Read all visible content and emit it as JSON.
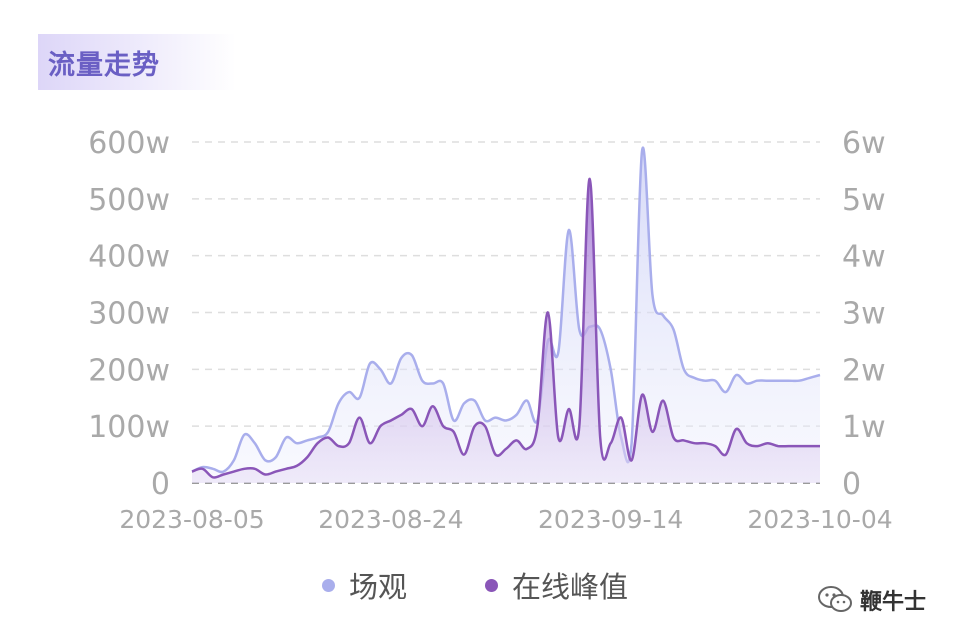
{
  "page_title": "流量走势",
  "colors": {
    "views": "#a9aeec",
    "peak": "#8a56b8",
    "title": "#6a5fc4"
  },
  "legend": [
    {
      "label": "场观",
      "color": "#a9aeec"
    },
    {
      "label": "在线峰值",
      "color": "#8a56b8"
    }
  ],
  "watermark": {
    "text": "鞭牛士",
    "icon": "wechat-icon"
  },
  "chart_data": {
    "type": "area",
    "title": "",
    "x_start": "2023-08-05",
    "x_end": "2023-10-04",
    "x_ticks": [
      "2023-08-05",
      "2023-08-24",
      "2023-09-14",
      "2023-10-04"
    ],
    "y_left": {
      "ticks": [
        "0",
        "100w",
        "200w",
        "300w",
        "400w",
        "500w",
        "600w"
      ],
      "range": [
        0,
        600
      ],
      "unit": "w"
    },
    "y_right": {
      "ticks": [
        "0",
        "1w",
        "2w",
        "3w",
        "4w",
        "5w",
        "6w"
      ],
      "range": [
        0,
        6
      ],
      "unit": "w"
    },
    "grid": true,
    "legend_position": "bottom",
    "series": [
      {
        "name": "场观",
        "axis": "left",
        "points": [
          [
            "2023-08-05",
            20
          ],
          [
            "2023-08-06",
            28
          ],
          [
            "2023-08-07",
            25
          ],
          [
            "2023-08-08",
            20
          ],
          [
            "2023-08-09",
            40
          ],
          [
            "2023-08-10",
            85
          ],
          [
            "2023-08-11",
            70
          ],
          [
            "2023-08-12",
            40
          ],
          [
            "2023-08-13",
            45
          ],
          [
            "2023-08-14",
            80
          ],
          [
            "2023-08-15",
            70
          ],
          [
            "2023-08-16",
            75
          ],
          [
            "2023-08-17",
            80
          ],
          [
            "2023-08-18",
            90
          ],
          [
            "2023-08-19",
            140
          ],
          [
            "2023-08-20",
            160
          ],
          [
            "2023-08-21",
            150
          ],
          [
            "2023-08-22",
            210
          ],
          [
            "2023-08-23",
            200
          ],
          [
            "2023-08-24",
            175
          ],
          [
            "2023-08-25",
            220
          ],
          [
            "2023-08-26",
            225
          ],
          [
            "2023-08-27",
            180
          ],
          [
            "2023-08-28",
            175
          ],
          [
            "2023-08-29",
            175
          ],
          [
            "2023-08-30",
            110
          ],
          [
            "2023-08-31",
            140
          ],
          [
            "2023-09-01",
            145
          ],
          [
            "2023-09-02",
            110
          ],
          [
            "2023-09-03",
            115
          ],
          [
            "2023-09-04",
            110
          ],
          [
            "2023-09-05",
            120
          ],
          [
            "2023-09-06",
            145
          ],
          [
            "2023-09-07",
            110
          ],
          [
            "2023-09-08",
            250
          ],
          [
            "2023-09-09",
            230
          ],
          [
            "2023-09-10",
            445
          ],
          [
            "2023-09-11",
            270
          ],
          [
            "2023-09-12",
            275
          ],
          [
            "2023-09-13",
            270
          ],
          [
            "2023-09-14",
            200
          ],
          [
            "2023-09-15",
            80
          ],
          [
            "2023-09-16",
            70
          ],
          [
            "2023-09-17",
            585
          ],
          [
            "2023-09-18",
            330
          ],
          [
            "2023-09-19",
            295
          ],
          [
            "2023-09-20",
            270
          ],
          [
            "2023-09-21",
            200
          ],
          [
            "2023-09-22",
            185
          ],
          [
            "2023-09-23",
            180
          ],
          [
            "2023-09-24",
            180
          ],
          [
            "2023-09-25",
            160
          ],
          [
            "2023-09-26",
            190
          ],
          [
            "2023-09-27",
            175
          ],
          [
            "2023-09-28",
            180
          ],
          [
            "2023-09-29",
            180
          ],
          [
            "2023-09-30",
            180
          ],
          [
            "2023-10-01",
            180
          ],
          [
            "2023-10-02",
            180
          ],
          [
            "2023-10-03",
            185
          ],
          [
            "2023-10-04",
            190
          ]
        ]
      },
      {
        "name": "在线峰值",
        "axis": "right",
        "points": [
          [
            "2023-08-05",
            0.2
          ],
          [
            "2023-08-06",
            0.25
          ],
          [
            "2023-08-07",
            0.1
          ],
          [
            "2023-08-08",
            0.15
          ],
          [
            "2023-08-09",
            0.2
          ],
          [
            "2023-08-10",
            0.25
          ],
          [
            "2023-08-11",
            0.25
          ],
          [
            "2023-08-12",
            0.15
          ],
          [
            "2023-08-13",
            0.2
          ],
          [
            "2023-08-14",
            0.25
          ],
          [
            "2023-08-15",
            0.3
          ],
          [
            "2023-08-16",
            0.45
          ],
          [
            "2023-08-17",
            0.7
          ],
          [
            "2023-08-18",
            0.8
          ],
          [
            "2023-08-19",
            0.65
          ],
          [
            "2023-08-20",
            0.7
          ],
          [
            "2023-08-21",
            1.15
          ],
          [
            "2023-08-22",
            0.7
          ],
          [
            "2023-08-23",
            1.0
          ],
          [
            "2023-08-24",
            1.1
          ],
          [
            "2023-08-25",
            1.2
          ],
          [
            "2023-08-26",
            1.3
          ],
          [
            "2023-08-27",
            1.0
          ],
          [
            "2023-08-28",
            1.35
          ],
          [
            "2023-08-29",
            1.0
          ],
          [
            "2023-08-30",
            0.9
          ],
          [
            "2023-08-31",
            0.5
          ],
          [
            "2023-09-01",
            1.0
          ],
          [
            "2023-09-02",
            1.0
          ],
          [
            "2023-09-03",
            0.5
          ],
          [
            "2023-09-04",
            0.6
          ],
          [
            "2023-09-05",
            0.75
          ],
          [
            "2023-09-06",
            0.6
          ],
          [
            "2023-09-07",
            1.0
          ],
          [
            "2023-09-08",
            3.0
          ],
          [
            "2023-09-09",
            0.8
          ],
          [
            "2023-09-10",
            1.3
          ],
          [
            "2023-09-11",
            1.0
          ],
          [
            "2023-09-12",
            5.35
          ],
          [
            "2023-09-13",
            0.8
          ],
          [
            "2023-09-14",
            0.7
          ],
          [
            "2023-09-15",
            1.15
          ],
          [
            "2023-09-16",
            0.4
          ],
          [
            "2023-09-17",
            1.55
          ],
          [
            "2023-09-18",
            0.9
          ],
          [
            "2023-09-19",
            1.45
          ],
          [
            "2023-09-20",
            0.8
          ],
          [
            "2023-09-21",
            0.75
          ],
          [
            "2023-09-22",
            0.7
          ],
          [
            "2023-09-23",
            0.7
          ],
          [
            "2023-09-24",
            0.65
          ],
          [
            "2023-09-25",
            0.5
          ],
          [
            "2023-09-26",
            0.95
          ],
          [
            "2023-09-27",
            0.7
          ],
          [
            "2023-09-28",
            0.65
          ],
          [
            "2023-09-29",
            0.7
          ],
          [
            "2023-09-30",
            0.65
          ],
          [
            "2023-10-01",
            0.65
          ],
          [
            "2023-10-02",
            0.65
          ],
          [
            "2023-10-03",
            0.65
          ],
          [
            "2023-10-04",
            0.65
          ]
        ]
      }
    ]
  }
}
